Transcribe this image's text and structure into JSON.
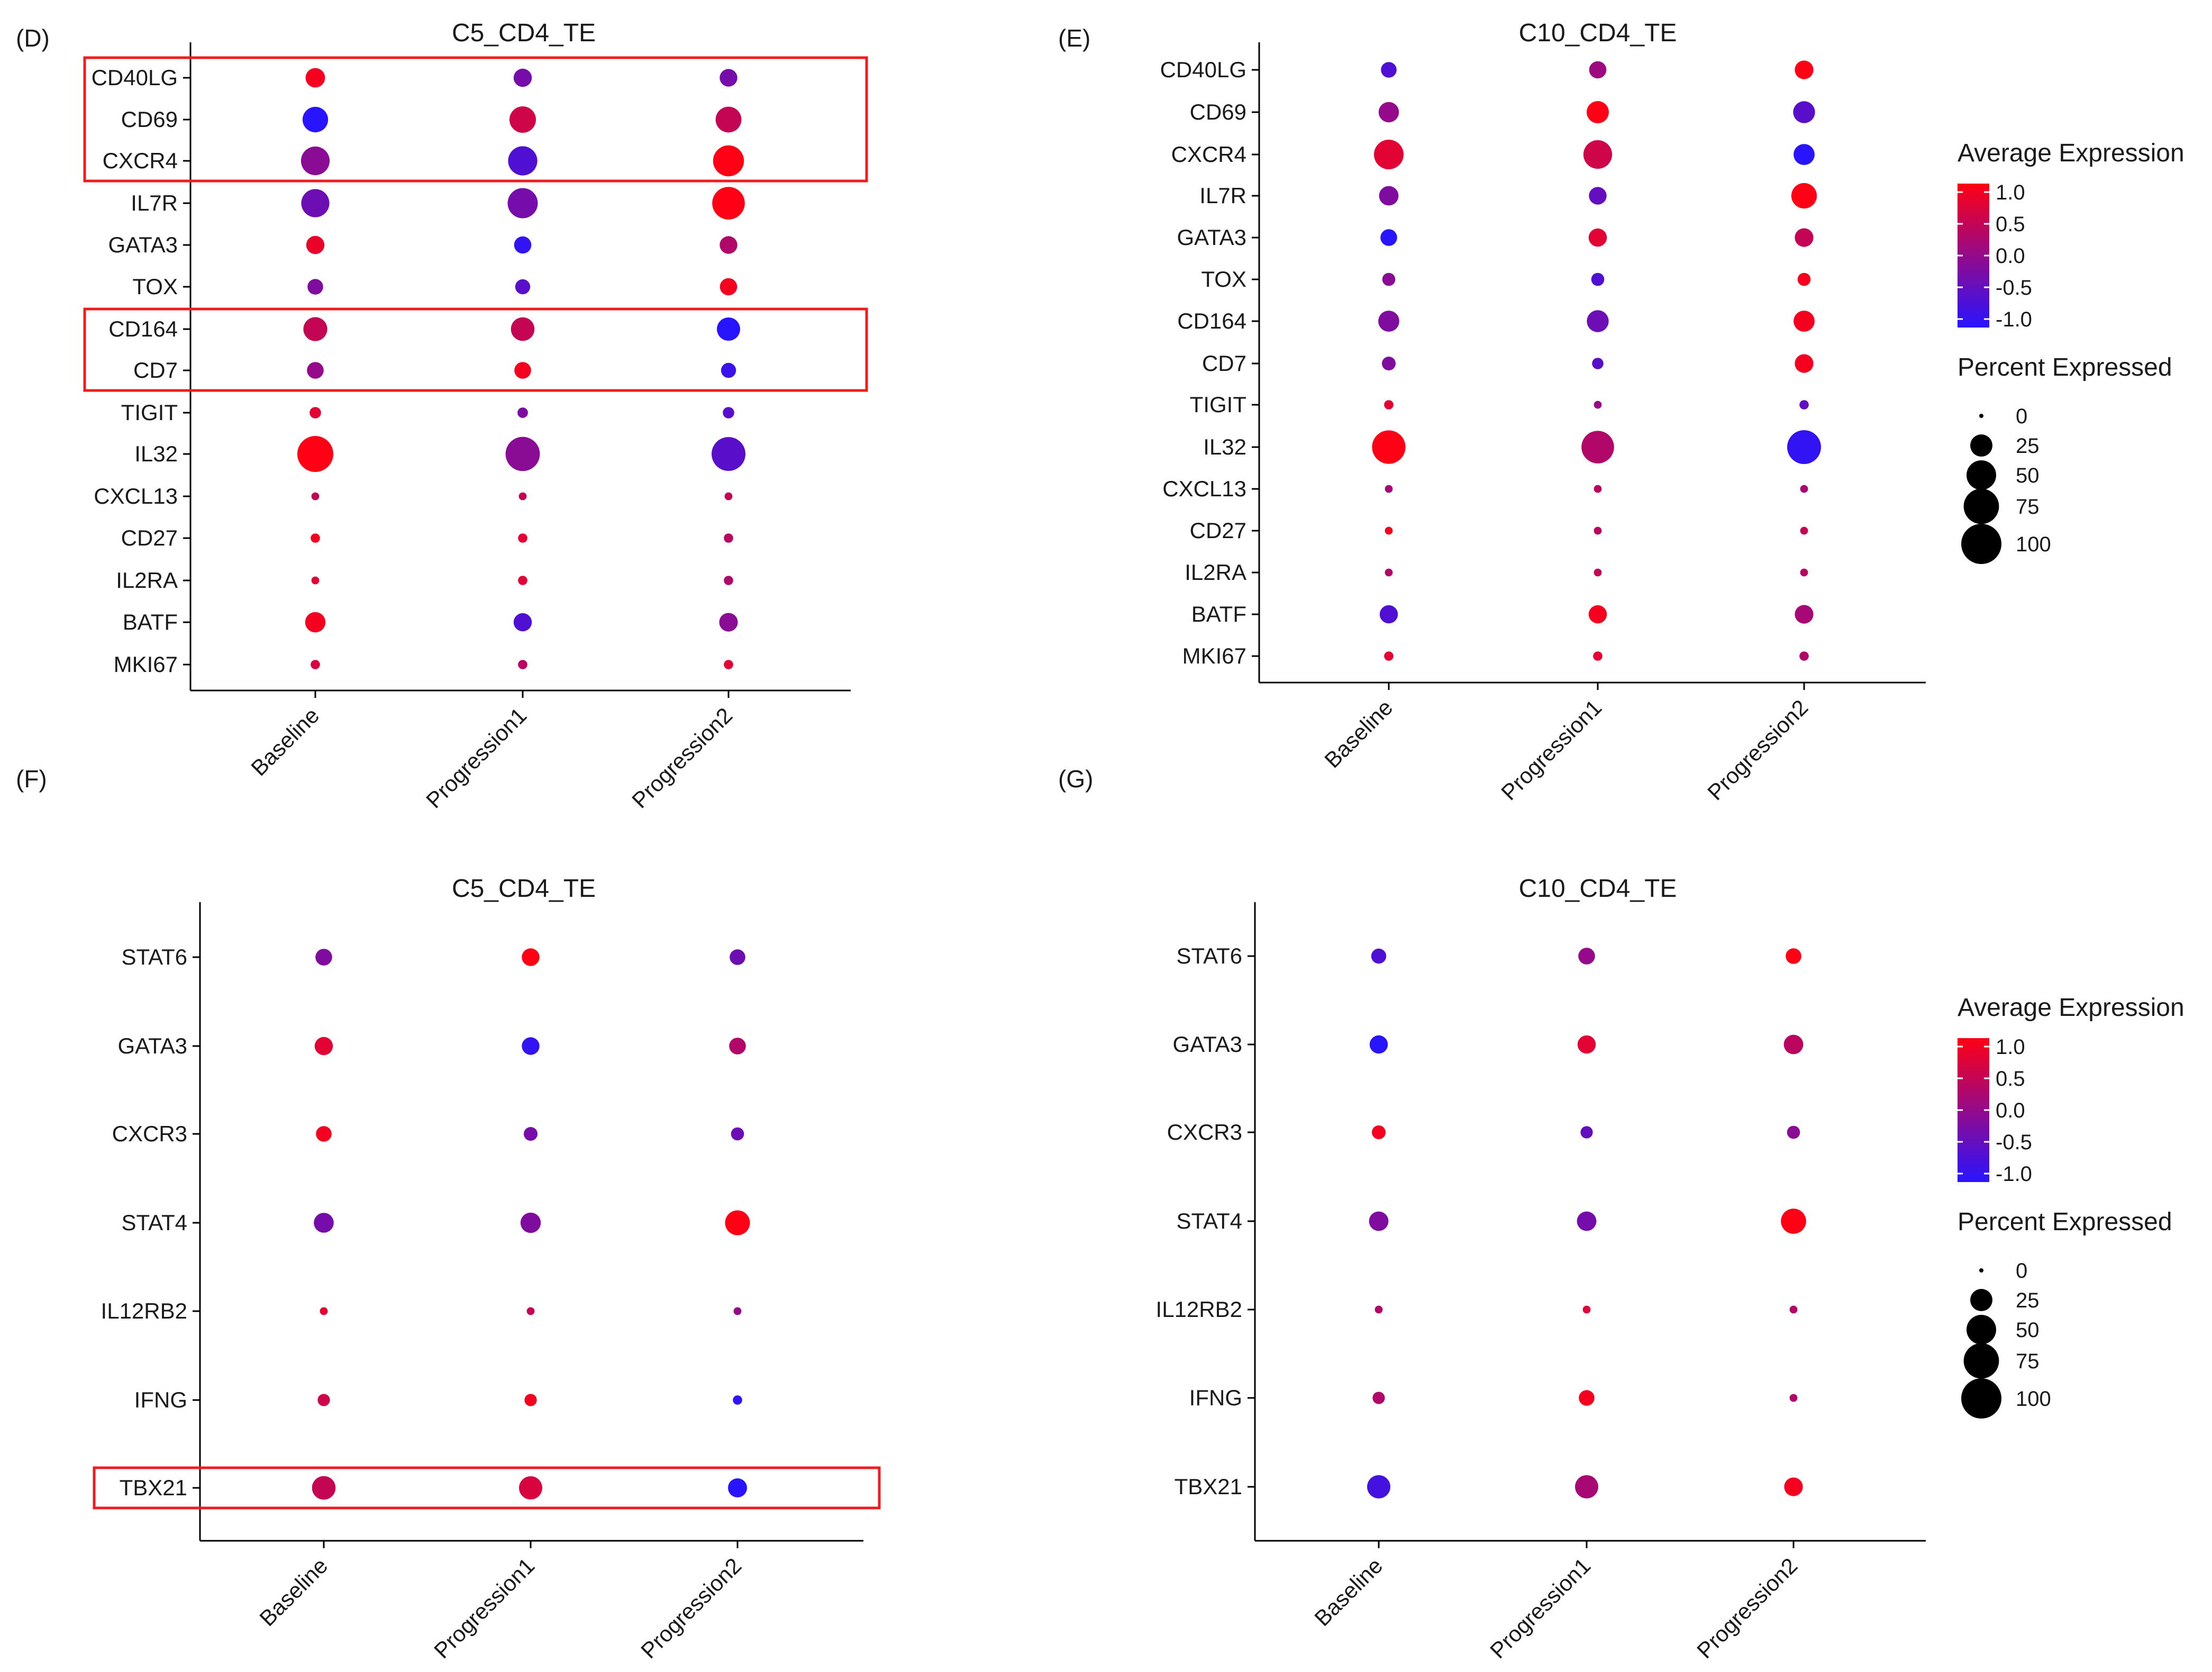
{
  "chart_data": [
    {
      "panel": "(D)",
      "type": "dotplot",
      "title": "C5_CD4_TE",
      "xlabel": "",
      "ylabel": "",
      "groups": [
        "Baseline",
        "Progression1",
        "Progression2"
      ],
      "genes": [
        "CD40LG",
        "CD69",
        "CXCR4",
        "IL7R",
        "GATA3",
        "TOX",
        "CD164",
        "CD7",
        "TIGIT",
        "IL32",
        "CXCL13",
        "CD27",
        "IL2RA",
        "BATF",
        "MKI67"
      ],
      "avg_expression": [
        [
          1.0,
          -0.3,
          -0.3
        ],
        [
          -1.1,
          0.6,
          0.5
        ],
        [
          -0.1,
          -0.7,
          1.1
        ],
        [
          -0.4,
          -0.3,
          1.1
        ],
        [
          0.9,
          -1.0,
          0.3
        ],
        [
          -0.2,
          -0.6,
          1.0
        ],
        [
          0.5,
          0.5,
          -1.1
        ],
        [
          0.0,
          1.0,
          -0.9
        ],
        [
          0.8,
          -0.2,
          -0.6
        ],
        [
          1.1,
          -0.1,
          -0.6
        ],
        [
          0.5,
          0.5,
          0.5
        ],
        [
          1.0,
          0.8,
          0.4
        ],
        [
          0.8,
          0.8,
          0.3
        ],
        [
          1.0,
          -0.7,
          -0.1
        ],
        [
          0.7,
          0.4,
          0.8
        ]
      ],
      "pct_expressed": [
        [
          18,
          15,
          14
        ],
        [
          35,
          38,
          36
        ],
        [
          46,
          48,
          55
        ],
        [
          44,
          52,
          62
        ],
        [
          15,
          13,
          14
        ],
        [
          10,
          9,
          13
        ],
        [
          30,
          29,
          28
        ],
        [
          12,
          12,
          9
        ],
        [
          4,
          3,
          4
        ],
        [
          78,
          70,
          68
        ],
        [
          1,
          1,
          1
        ],
        [
          2,
          2,
          2
        ],
        [
          1,
          2,
          2
        ],
        [
          20,
          15,
          16
        ],
        [
          2,
          2,
          2
        ]
      ],
      "highlight_rows": [
        [
          "CD40LG",
          "CXCR4"
        ],
        [
          "CD164",
          "CD7"
        ]
      ]
    },
    {
      "panel": "(E)",
      "type": "dotplot",
      "title": "C10_CD4_TE",
      "xlabel": "",
      "ylabel": "",
      "groups": [
        "Baseline",
        "Progression1",
        "Progression2"
      ],
      "genes": [
        "CD40LG",
        "CD69",
        "CXCR4",
        "IL7R",
        "GATA3",
        "TOX",
        "CD164",
        "CD7",
        "TIGIT",
        "IL32",
        "CXCL13",
        "CD27",
        "IL2RA",
        "BATF",
        "MKI67"
      ],
      "avg_expression": [
        [
          -0.7,
          0.1,
          1.1
        ],
        [
          0.0,
          1.1,
          -0.6
        ],
        [
          0.8,
          0.6,
          -1.1
        ],
        [
          -0.2,
          -0.5,
          1.1
        ],
        [
          -1.1,
          0.8,
          0.5
        ],
        [
          -0.1,
          -0.7,
          1.0
        ],
        [
          -0.2,
          -0.4,
          1.0
        ],
        [
          -0.2,
          -0.6,
          1.0
        ],
        [
          0.8,
          0.0,
          -0.5
        ],
        [
          1.1,
          0.3,
          -1.0
        ],
        [
          0.2,
          0.4,
          0.2
        ],
        [
          1.0,
          0.4,
          0.5
        ],
        [
          0.3,
          0.5,
          0.4
        ],
        [
          -0.7,
          1.0,
          0.2
        ],
        [
          0.8,
          0.8,
          0.3
        ]
      ],
      "pct_expressed": [
        [
          10,
          13,
          16
        ],
        [
          20,
          25,
          24
        ],
        [
          50,
          46,
          22
        ],
        [
          18,
          14,
          35
        ],
        [
          12,
          15,
          16
        ],
        [
          6,
          6,
          6
        ],
        [
          22,
          24,
          22
        ],
        [
          7,
          4,
          16
        ],
        [
          2,
          1,
          2
        ],
        [
          66,
          62,
          68
        ],
        [
          1,
          1,
          1
        ],
        [
          1,
          1,
          1
        ],
        [
          1,
          1,
          1
        ],
        [
          15,
          15,
          16
        ],
        [
          2,
          2,
          2
        ]
      ],
      "color_legend": {
        "title": "Average Expression",
        "ticks": [
          "1.0",
          "0.5",
          "0.0",
          "-0.5",
          "-1.0"
        ]
      },
      "size_legend": {
        "title": "Percent Expressed",
        "ticks": [
          "0",
          "25",
          "50",
          "75",
          "100"
        ]
      }
    },
    {
      "panel": "(F)",
      "type": "dotplot",
      "title": "C5_CD4_TE",
      "xlabel": "",
      "ylabel": "",
      "groups": [
        "Baseline",
        "Progression1",
        "Progression2"
      ],
      "genes": [
        "STAT6",
        "GATA3",
        "CXCR3",
        "STAT4",
        "IL12RB2",
        "IFNG",
        "TBX21"
      ],
      "avg_expression": [
        [
          -0.2,
          1.1,
          -0.4
        ],
        [
          0.8,
          -1.0,
          0.3
        ],
        [
          1.0,
          -0.3,
          -0.4
        ],
        [
          -0.3,
          -0.2,
          1.1
        ],
        [
          0.8,
          0.5,
          0.0
        ],
        [
          0.6,
          1.0,
          -1.0
        ],
        [
          0.5,
          0.7,
          -1.1
        ]
      ],
      "pct_expressed": [
        [
          12,
          14,
          10
        ],
        [
          15,
          14,
          12
        ],
        [
          10,
          7,
          6
        ],
        [
          19,
          20,
          33
        ],
        [
          1,
          1,
          1
        ],
        [
          5,
          5,
          2
        ],
        [
          29,
          28,
          17
        ]
      ],
      "highlight_rows": [
        [
          "TBX21",
          "TBX21"
        ]
      ]
    },
    {
      "panel": "(G)",
      "type": "dotplot",
      "title": "C10_CD4_TE",
      "xlabel": "",
      "ylabel": "",
      "groups": [
        "Baseline",
        "Progression1",
        "Progression2"
      ],
      "genes": [
        "STAT6",
        "GATA3",
        "CXCR3",
        "STAT4",
        "IL12RB2",
        "IFNG",
        "TBX21"
      ],
      "avg_expression": [
        [
          -0.7,
          0.0,
          1.1
        ],
        [
          -1.1,
          0.8,
          0.4
        ],
        [
          1.0,
          -0.5,
          -0.1
        ],
        [
          -0.2,
          -0.3,
          1.1
        ],
        [
          0.3,
          0.8,
          0.3
        ],
        [
          0.3,
          1.0,
          0.3
        ],
        [
          -0.8,
          0.2,
          1.0
        ]
      ],
      "pct_expressed": [
        [
          9,
          12,
          10
        ],
        [
          15,
          15,
          18
        ],
        [
          7,
          5,
          6
        ],
        [
          18,
          18,
          34
        ],
        [
          1,
          1,
          1
        ],
        [
          5,
          10,
          1
        ],
        [
          28,
          28,
          16
        ]
      ],
      "color_legend": {
        "title": "Average Expression",
        "ticks": [
          "1.0",
          "0.5",
          "0.0",
          "-0.5",
          "-1.0"
        ]
      },
      "size_legend": {
        "title": "Percent Expressed",
        "ticks": [
          "0",
          "25",
          "50",
          "75",
          "100"
        ]
      }
    }
  ]
}
